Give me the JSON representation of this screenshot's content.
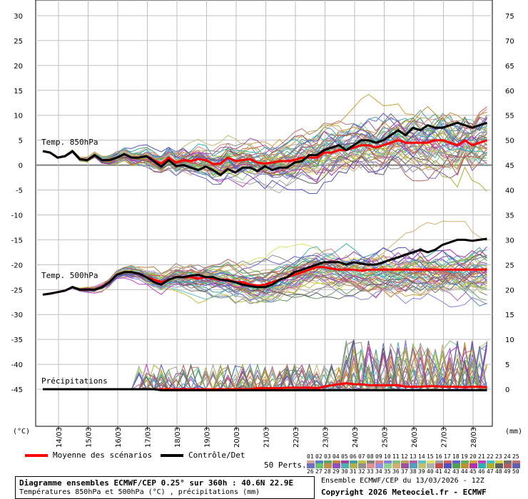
{
  "colors": {
    "mean": "#ff0000",
    "control": "#000000",
    "grid": "#bfbfbf",
    "zero": "#808080"
  },
  "chart_data": {
    "type": "line",
    "title": "Diagramme ensembles ECMWF/CEP 0.25° sur 360h : 40.6N 22.9E",
    "subtitle": "Températures 850hPa et 500hPa (°C) , précipitations (mm)",
    "run_info": "Ensemble ECMWF/CEP du 13/03/2026 - 12Z",
    "copyright": "Copyright 2026 Meteociel.fr - ECMWF",
    "left_axis": {
      "label": "(°C)",
      "ticks": [
        30,
        25,
        20,
        15,
        10,
        5,
        0,
        -5,
        -10,
        -15,
        -20,
        -25,
        -30,
        -35,
        -40,
        -45
      ],
      "range": [
        -50,
        32
      ]
    },
    "right_axis": {
      "label": "(mm)",
      "ticks": [
        75,
        70,
        65,
        60,
        55,
        50,
        45,
        40,
        35,
        30,
        25,
        20,
        15,
        10,
        5,
        0
      ]
    },
    "x_axis": {
      "ticks": [
        "14/03",
        "15/03",
        "16/03",
        "17/03",
        "18/03",
        "19/03",
        "20/03",
        "21/03",
        "22/03",
        "23/03",
        "24/03",
        "25/03",
        "26/03",
        "27/03",
        "28/03"
      ]
    },
    "annotations": [
      "Temp. 850hPa",
      "Temp. 500hPa",
      "Précipitations"
    ],
    "legend": {
      "mean": "Moyenne des scénarios",
      "control": "Contrôle/Det",
      "perts": "50 Perts."
    },
    "pert_labels_top": [
      "01",
      "02",
      "03",
      "04",
      "05",
      "06",
      "07",
      "08",
      "09",
      "10",
      "11",
      "12",
      "13",
      "14",
      "15",
      "16",
      "17",
      "18",
      "19",
      "20",
      "21",
      "22",
      "23",
      "24",
      "25"
    ],
    "pert_labels_bottom": [
      "26",
      "27",
      "28",
      "29",
      "30",
      "31",
      "32",
      "33",
      "34",
      "35",
      "36",
      "37",
      "38",
      "39",
      "40",
      "41",
      "42",
      "43",
      "44",
      "45",
      "46",
      "47",
      "48",
      "49",
      "50"
    ],
    "pert_colors_top": [
      "#d9a0a0",
      "#5080c0",
      "#60a060",
      "#c08040",
      "#a040a0",
      "#40a0a0",
      "#c0c040",
      "#808080",
      "#e08080",
      "#8080e0",
      "#80c080",
      "#c0a060",
      "#b060b0",
      "#60c0c0",
      "#e0e060",
      "#a0a0a0",
      "#d06060",
      "#6060d0",
      "#60b060",
      "#d0a040",
      "#c040c0",
      "#40c0c0",
      "#d0d040",
      "#707070",
      "#c07070"
    ],
    "pert_colors_bottom": [
      "#7070c0",
      "#70c070",
      "#c09050",
      "#9050c0",
      "#50b0b0",
      "#b0b050",
      "#909090",
      "#e09090",
      "#9090e0",
      "#90d090",
      "#d0b070",
      "#a050a0",
      "#50a0c0",
      "#c0c070",
      "#b0b0b0",
      "#c05050",
      "#5050c0",
      "#50a050",
      "#c09030",
      "#b030b0",
      "#30b0b0",
      "#b0b030",
      "#606060",
      "#b06060",
      "#6060b0"
    ],
    "x_days": [
      0,
      0.25,
      0.5,
      0.75,
      1,
      1.25,
      1.5,
      1.75,
      2,
      2.25,
      2.5,
      2.75,
      3,
      3.25,
      3.5,
      3.75,
      4,
      4.25,
      4.5,
      4.75,
      5,
      5.25,
      5.5,
      5.75,
      6,
      6.25,
      6.5,
      6.75,
      7,
      7.25,
      7.5,
      7.75,
      8,
      8.25,
      8.5,
      8.75,
      9,
      9.25,
      9.5,
      9.75,
      10,
      10.25,
      10.5,
      10.75,
      11,
      11.25,
      11.5,
      11.75,
      12,
      12.25,
      12.5,
      12.75,
      13,
      13.25,
      13.5,
      13.75,
      14,
      14.25,
      14.5,
      14.75,
      15
    ],
    "series": [
      {
        "name": "Moyenne des scénarios",
        "level": "850",
        "values": [
          2.8,
          2.5,
          1.5,
          1.8,
          2.8,
          1.2,
          1.0,
          2.0,
          1.0,
          1.0,
          1.5,
          2.2,
          1.5,
          1.5,
          1.8,
          1.0,
          0.3,
          1.5,
          0.5,
          1.0,
          0.8,
          1.2,
          1.0,
          0.2,
          0.3,
          1.5,
          0.8,
          1.0,
          1.2,
          0.5,
          0.3,
          0.5,
          0.8,
          0.8,
          1.0,
          1.5,
          1.5,
          1.5,
          2.5,
          2.5,
          3.0,
          3.0,
          3.5,
          4.0,
          4.0,
          3.5,
          4.0,
          4.5,
          5.0,
          4.5,
          4.5,
          4.5,
          4.5,
          5.0,
          5.0,
          4.5,
          4.0,
          5.0,
          4.0,
          4.5,
          5.0
        ]
      },
      {
        "name": "Contrôle/Det",
        "level": "850",
        "values": [
          2.8,
          2.5,
          1.5,
          1.8,
          2.8,
          1.2,
          1.0,
          2.0,
          1.0,
          1.0,
          1.5,
          2.2,
          1.5,
          1.5,
          1.8,
          0.8,
          -0.3,
          1.0,
          -0.2,
          0.0,
          -0.5,
          -1.0,
          -0.3,
          -1.0,
          -2.0,
          -0.8,
          -1.5,
          -0.5,
          -0.5,
          -1.2,
          -0.2,
          -1.0,
          -0.5,
          -0.5,
          0.5,
          0.8,
          2.0,
          2.0,
          3.0,
          3.5,
          4.0,
          3.0,
          4.0,
          5.0,
          5.0,
          4.5,
          5.0,
          6.0,
          7.0,
          6.0,
          7.5,
          7.0,
          8.0,
          7.5,
          7.5,
          8.0,
          8.5,
          8.0,
          7.5,
          8.0,
          8.5
        ]
      },
      {
        "name": "Moyenne des scénarios",
        "level": "500",
        "values": [
          -26,
          -25.8,
          -25.5,
          -25.2,
          -24.5,
          -25,
          -25,
          -25,
          -24.5,
          -23.5,
          -22,
          -21.5,
          -21.5,
          -21.8,
          -22.5,
          -23,
          -23.5,
          -23,
          -22.5,
          -22.5,
          -22.5,
          -22.8,
          -22.5,
          -22.8,
          -23,
          -23,
          -23.5,
          -23.5,
          -24,
          -24.2,
          -24,
          -23.5,
          -23,
          -22.5,
          -22,
          -21.5,
          -21,
          -20.5,
          -20.5,
          -20.8,
          -21,
          -21,
          -21,
          -21.2,
          -21,
          -21,
          -21,
          -21,
          -21,
          -21,
          -21,
          -21,
          -21,
          -21,
          -21,
          -21,
          -21,
          -21,
          -21,
          -21,
          -21
        ]
      },
      {
        "name": "Contrôle/Det",
        "level": "500",
        "values": [
          -26,
          -25.8,
          -25.5,
          -25.2,
          -24.5,
          -25,
          -25,
          -25,
          -24.5,
          -23.5,
          -22,
          -21.5,
          -21.5,
          -21.8,
          -22.5,
          -23.5,
          -24,
          -23,
          -22.5,
          -22.5,
          -22.2,
          -22,
          -22.5,
          -22.5,
          -23,
          -23.2,
          -23.5,
          -24,
          -24.3,
          -24.5,
          -24.5,
          -24,
          -23,
          -22.5,
          -21.5,
          -21,
          -20.5,
          -20,
          -19.5,
          -19.5,
          -19.5,
          -20,
          -19.5,
          -19.8,
          -20,
          -20,
          -19.5,
          -19,
          -18.5,
          -18,
          -17.5,
          -17,
          -17.5,
          -17,
          -16,
          -15.5,
          -15,
          -15,
          -15.2,
          -15,
          -14.8
        ]
      },
      {
        "name": "Moyenne des scénarios",
        "level": "precip",
        "values": [
          0,
          0,
          0,
          0,
          0,
          0,
          0,
          0,
          0,
          0,
          0,
          0,
          0,
          0,
          0,
          0,
          0,
          0,
          0,
          0,
          0,
          0,
          0,
          0,
          0,
          0,
          0,
          0,
          0,
          0.2,
          0.2,
          0.2,
          0.2,
          0.3,
          0.3,
          0.3,
          0.3,
          0.2,
          0.5,
          0.8,
          1.0,
          1.2,
          1.0,
          1.0,
          0.8,
          0.8,
          0.8,
          0.8,
          0.8,
          0.5,
          0.5,
          0.5,
          0.6,
          0.6,
          0.5,
          0.5,
          0.5,
          0.4,
          0.5,
          0.5,
          0.4
        ]
      },
      {
        "name": "Contrôle/Det",
        "level": "precip",
        "values": [
          0,
          0,
          0,
          0,
          0,
          0,
          0,
          0,
          0,
          0,
          0,
          0,
          0,
          0,
          0,
          0,
          -0.2,
          -0.2,
          -0.2,
          -0.2,
          -0.2,
          -0.2,
          -0.2,
          -0.2,
          -0.2,
          -0.2,
          -0.2,
          -0.2,
          -0.2,
          -0.2,
          -0.2,
          -0.2,
          -0.2,
          -0.2,
          -0.2,
          -0.2,
          -0.2,
          -0.2,
          -0.2,
          -0.2,
          -0.2,
          -0.2,
          -0.2,
          -0.2,
          -0.2,
          -0.2,
          -0.2,
          -0.2,
          -0.2,
          -0.2,
          -0.2,
          -0.2,
          -0.2,
          -0.2,
          -0.2,
          -0.2,
          -0.2,
          -0.2,
          -0.2,
          -0.2,
          -0.2
        ]
      }
    ]
  }
}
